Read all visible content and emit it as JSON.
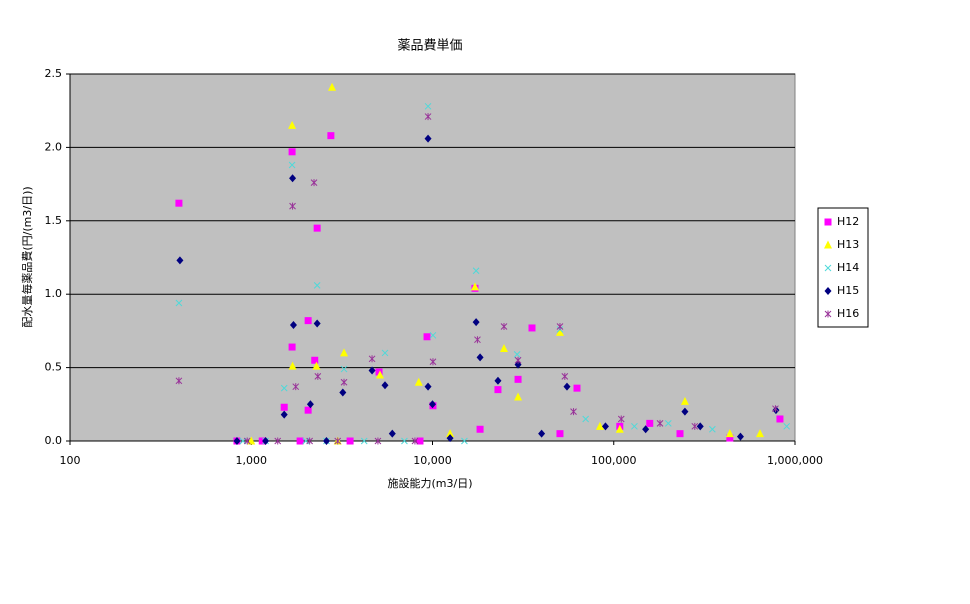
{
  "chart_data": {
    "type": "scatter",
    "title": "薬品費単価",
    "x_label": "施設能力(m3/日)",
    "y_label": "配水量毎薬品費(円/(m3/日))",
    "xscale": "log",
    "xlim": [
      100,
      1000000
    ],
    "xticks": [
      100,
      {
        "value": 1000,
        "label": "1,000"
      },
      {
        "value": 10000,
        "label": "10,000"
      },
      {
        "value": 100000,
        "label": "100,000"
      },
      {
        "value": 1000000,
        "label": "1,000,000"
      }
    ],
    "ylim": [
      0,
      2.5
    ],
    "yticks": [
      {
        "value": 0,
        "label": "0.0"
      },
      0.5,
      {
        "value": 1,
        "label": "1.0"
      },
      1.5,
      {
        "value": 2,
        "label": "2.0"
      },
      2.5
    ],
    "grid": true,
    "legend": "right",
    "series": [
      {
        "name": "H12",
        "color": "#ff00ff",
        "marker": "square",
        "x": [
          399,
          1680,
          1680,
          2060,
          2310,
          2750,
          2240,
          2060,
          1520,
          5070,
          9330,
          10060,
          17150,
          22970,
          29650,
          35400,
          62700,
          834,
          1150,
          1860,
          3510,
          8530,
          18300,
          50500,
          108000,
          158000,
          232000,
          437000,
          826000
        ],
        "values": [
          1.62,
          1.97,
          0.64,
          0.82,
          1.45,
          2.08,
          0.55,
          0.21,
          0.23,
          0.47,
          0.71,
          0.24,
          1.04,
          0.35,
          0.42,
          0.77,
          0.36,
          0,
          0,
          0,
          0,
          0,
          0.08,
          0.05,
          0.1,
          0.12,
          0.05,
          0.02,
          0.15
        ]
      },
      {
        "name": "H13",
        "color": "#ffff00",
        "marker": "triangle",
        "x": [
          1680,
          2790,
          1690,
          2290,
          3250,
          17150,
          50500,
          24800,
          8400,
          5130,
          29650,
          247000,
          1000,
          3000,
          12500,
          83900,
          108000,
          437000,
          641000
        ],
        "values": [
          2.15,
          2.41,
          0.51,
          0.51,
          0.6,
          1.05,
          0.74,
          0.63,
          0.4,
          0.45,
          0.3,
          0.27,
          0,
          0,
          0.05,
          0.1,
          0.08,
          0.05,
          0.05
        ]
      },
      {
        "name": "H14",
        "color": "#4fd9d9",
        "marker": "x",
        "x": [
          9450,
          1680,
          2310,
          17400,
          399,
          5470,
          10060,
          1520,
          3250,
          50500,
          29300,
          900,
          1200,
          2000,
          2600,
          4200,
          7000,
          15000,
          70000,
          130000,
          200000,
          350000,
          900000
        ],
        "values": [
          2.28,
          1.88,
          1.06,
          1.16,
          0.94,
          0.6,
          0.72,
          0.36,
          0.49,
          0.76,
          0.59,
          0,
          0,
          0,
          0,
          0,
          0,
          0,
          0.15,
          0.1,
          0.12,
          0.08,
          0.1
        ]
      },
      {
        "name": "H15",
        "color": "#000080",
        "marker": "diamond",
        "x": [
          404,
          1690,
          1710,
          2310,
          9450,
          17400,
          3200,
          4640,
          5470,
          9450,
          10000,
          18300,
          29650,
          55200,
          1520,
          2120,
          22970,
          785000,
          247000,
          834,
          1200,
          2600,
          6000,
          12500,
          40000,
          90000,
          150000,
          300000,
          500000
        ],
        "values": [
          1.23,
          1.79,
          0.79,
          0.8,
          2.06,
          0.81,
          0.33,
          0.48,
          0.38,
          0.37,
          0.25,
          0.57,
          0.52,
          0.37,
          0.18,
          0.25,
          0.41,
          0.21,
          0.2,
          0,
          0,
          0,
          0.05,
          0.02,
          0.05,
          0.1,
          0.08,
          0.1,
          0.03
        ]
      },
      {
        "name": "H16",
        "color": "#993399",
        "marker": "asterisk",
        "x": [
          9450,
          2220,
          1690,
          399,
          10060,
          24800,
          17700,
          4640,
          1760,
          2330,
          3250,
          29650,
          53700,
          50500,
          950,
          1400,
          2100,
          3000,
          5000,
          8000,
          60000,
          110000,
          180000,
          280000,
          780000
        ],
        "values": [
          2.21,
          1.76,
          1.6,
          0.41,
          0.54,
          0.78,
          0.69,
          0.56,
          0.37,
          0.44,
          0.4,
          0.55,
          0.44,
          0.78,
          0,
          0,
          0,
          0,
          0,
          0,
          0.2,
          0.15,
          0.12,
          0.1,
          0.22
        ]
      }
    ]
  }
}
